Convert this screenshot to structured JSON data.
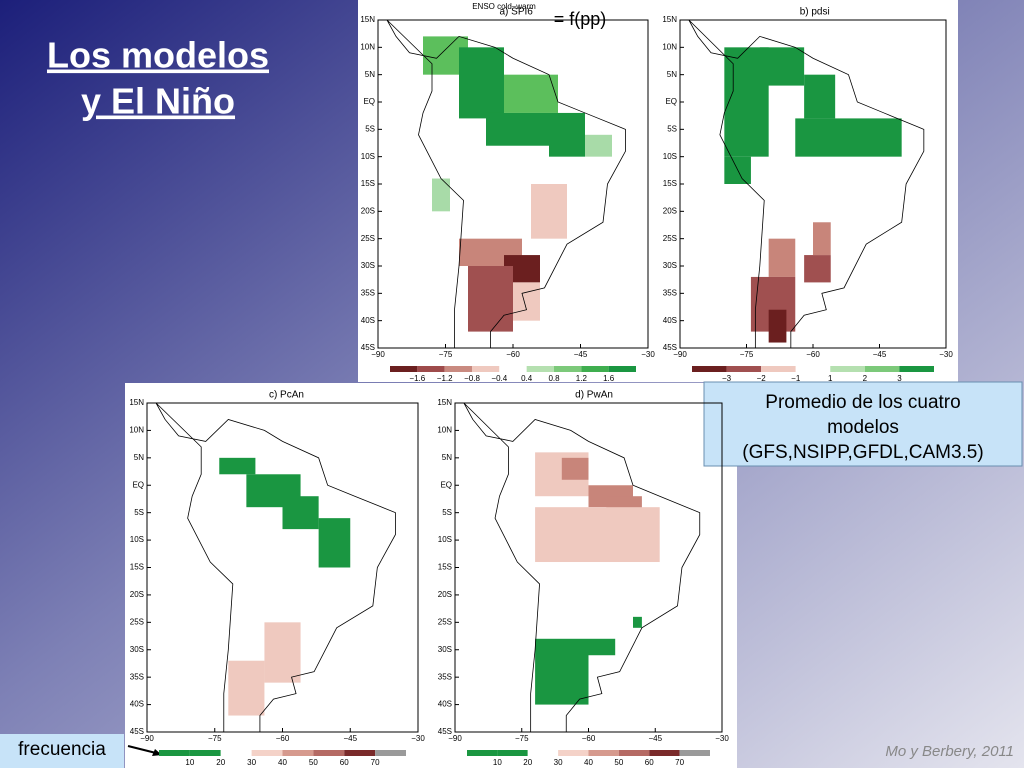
{
  "title": [
    "Los modelos",
    "y El Niño"
  ],
  "formula": "= f(pp)",
  "figure_header": "ENSO cold–warm",
  "lat_labels": [
    "15N",
    "10N",
    "5N",
    "EQ",
    "5S",
    "10S",
    "15S",
    "20S",
    "25S",
    "30S",
    "35S",
    "40S",
    "45S"
  ],
  "lon_labels": [
    "−90",
    "−75",
    "−60",
    "−45",
    "−30"
  ],
  "panels": [
    {
      "label": "a)  SPI6",
      "colorbar": [
        "−1.6",
        "−1.2",
        "−0.8",
        "−0.4",
        "0.4",
        "0.8",
        "1.2",
        "1.6"
      ]
    },
    {
      "label": "b)  pdsi",
      "colorbar": [
        "−3",
        "−2",
        "−1",
        "1",
        "2",
        "3"
      ]
    },
    {
      "label": "c)  PcAn",
      "colorbar": [
        "10",
        "20",
        "30",
        "40",
        "50",
        "60",
        "70"
      ]
    },
    {
      "label": "d)  PwAn",
      "colorbar": [
        "10",
        "20",
        "30",
        "40",
        "50",
        "60",
        "70"
      ]
    }
  ],
  "note": [
    "Promedio de los cuatro",
    "modelos",
    "(GFS,NSIPP,GFDL,CAM3.5)"
  ],
  "caption": "frecuencia",
  "source": "Mo y Berbery, 2011"
}
